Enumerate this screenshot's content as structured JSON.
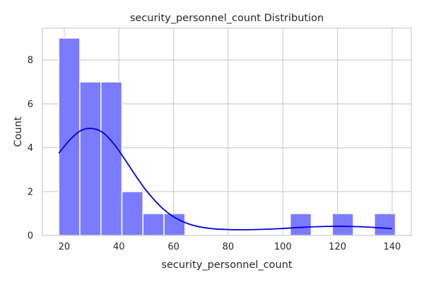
{
  "chart_data": {
    "type": "bar",
    "subtype": "histogram-with-kde",
    "title": "security_personnel_count Distribution",
    "xlabel": "security_personnel_count",
    "ylabel": "Count",
    "xlim": [
      12,
      147
    ],
    "ylim": [
      0,
      9.45
    ],
    "xticks": [
      20,
      40,
      60,
      80,
      100,
      120,
      140
    ],
    "yticks": [
      0,
      2,
      4,
      6,
      8
    ],
    "grid": true,
    "legend": "none",
    "bin_edges": [
      18,
      25.7,
      33.4,
      41.1,
      48.8,
      56.5,
      64.2,
      71.9,
      79.6,
      87.3,
      95.0,
      102.7,
      110.4,
      118.1,
      125.8,
      133.5,
      141.2
    ],
    "counts": [
      9,
      7,
      7,
      2,
      1,
      1,
      0,
      0,
      0,
      0,
      0,
      1,
      0,
      1,
      0,
      1
    ],
    "kde": {
      "x": [
        18,
        22,
        26,
        30,
        34,
        38,
        42,
        46,
        50,
        55,
        60,
        65,
        70,
        75,
        80,
        85,
        90,
        95,
        100,
        105,
        110,
        115,
        120,
        125,
        130,
        135,
        140
      ],
      "y": [
        3.75,
        4.35,
        4.78,
        4.88,
        4.7,
        4.2,
        3.5,
        2.75,
        2.05,
        1.35,
        0.85,
        0.55,
        0.38,
        0.3,
        0.27,
        0.26,
        0.27,
        0.29,
        0.32,
        0.36,
        0.39,
        0.41,
        0.42,
        0.41,
        0.39,
        0.35,
        0.31
      ]
    },
    "colors": {
      "bar_fill": "#7b7bff",
      "bar_edge": "#ffffff",
      "kde_line": "#0000e0",
      "grid": "#cccccc",
      "axes_edge": "#cccccc"
    }
  }
}
